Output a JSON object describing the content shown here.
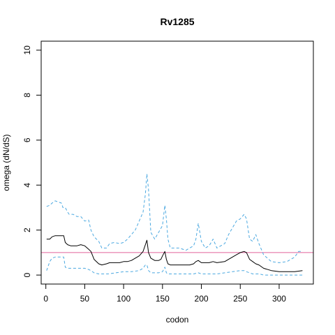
{
  "chart_data": {
    "type": "line",
    "title": "Rv1285",
    "xlabel": "codon",
    "ylabel": "omega (dN/dS)",
    "xlim": [
      -6,
      344
    ],
    "ylim": [
      -0.4,
      10.4
    ],
    "x_ticks": [
      0,
      50,
      100,
      150,
      200,
      250,
      300
    ],
    "y_ticks": [
      0,
      2,
      4,
      6,
      8,
      10
    ],
    "x_tick_labels": [
      "0",
      "50",
      "100",
      "150",
      "200",
      "250",
      "300"
    ],
    "y_tick_labels": [
      "0",
      "2",
      "4",
      "6",
      "8",
      "10"
    ],
    "reference_line": {
      "y": 1,
      "color": "#e0609a"
    },
    "grid": false,
    "colors": {
      "estimate": "#000000",
      "bounds": "#4aa8e0"
    },
    "series": [
      {
        "role": "estimate",
        "style": "solid",
        "x": [
          1,
          5,
          8,
          12,
          20,
          23,
          25,
          28,
          32,
          40,
          45,
          50,
          55,
          58,
          62,
          68,
          72,
          78,
          82,
          88,
          95,
          100,
          105,
          110,
          115,
          120,
          125,
          128,
          130,
          132,
          135,
          140,
          145,
          148,
          150,
          153,
          155,
          157,
          160,
          165,
          172,
          180,
          185,
          190,
          193,
          196,
          200,
          205,
          210,
          215,
          220,
          230,
          235,
          240,
          245,
          250,
          255,
          258,
          262,
          266,
          270,
          274,
          280,
          290,
          300,
          310,
          320,
          330
        ],
        "y": [
          1.6,
          1.6,
          1.7,
          1.75,
          1.75,
          1.75,
          1.45,
          1.35,
          1.3,
          1.3,
          1.35,
          1.3,
          1.15,
          1.05,
          0.7,
          0.5,
          0.45,
          0.5,
          0.55,
          0.55,
          0.55,
          0.6,
          0.6,
          0.65,
          0.75,
          0.85,
          1.05,
          1.35,
          1.55,
          1.0,
          0.75,
          0.65,
          0.65,
          0.7,
          0.85,
          1.05,
          0.7,
          0.5,
          0.45,
          0.45,
          0.45,
          0.45,
          0.45,
          0.5,
          0.6,
          0.65,
          0.55,
          0.55,
          0.55,
          0.6,
          0.55,
          0.6,
          0.7,
          0.8,
          0.9,
          1.0,
          1.05,
          1.0,
          0.7,
          0.6,
          0.5,
          0.45,
          0.3,
          0.2,
          0.15,
          0.15,
          0.15,
          0.2
        ]
      },
      {
        "role": "upper",
        "style": "dashed",
        "x": [
          1,
          5,
          8,
          12,
          20,
          22,
          25,
          28,
          30,
          35,
          40,
          45,
          50,
          55,
          58,
          62,
          68,
          72,
          78,
          82,
          88,
          95,
          100,
          105,
          110,
          115,
          120,
          125,
          128,
          130,
          132,
          135,
          140,
          145,
          150,
          153,
          155,
          157,
          160,
          165,
          172,
          180,
          185,
          190,
          193,
          196,
          200,
          205,
          210,
          215,
          220,
          230,
          235,
          240,
          245,
          250,
          255,
          258,
          262,
          266,
          270,
          274,
          280,
          290,
          300,
          310,
          320,
          325,
          330
        ],
        "y": [
          3.05,
          3.1,
          3.2,
          3.3,
          3.2,
          3.0,
          3.0,
          2.8,
          2.7,
          2.7,
          2.6,
          2.6,
          2.4,
          2.45,
          2.0,
          1.7,
          1.5,
          1.2,
          1.2,
          1.4,
          1.45,
          1.4,
          1.45,
          1.6,
          1.8,
          2.0,
          2.4,
          2.8,
          3.6,
          4.5,
          3.8,
          1.9,
          1.6,
          1.9,
          2.2,
          3.1,
          2.5,
          1.6,
          1.2,
          1.2,
          1.2,
          1.1,
          1.2,
          1.3,
          1.6,
          2.3,
          1.5,
          1.2,
          1.3,
          1.6,
          1.2,
          1.4,
          1.8,
          2.1,
          2.4,
          2.5,
          2.7,
          2.5,
          1.6,
          1.5,
          1.8,
          1.4,
          0.9,
          0.6,
          0.55,
          0.6,
          0.8,
          1.05,
          1.05
        ]
      },
      {
        "role": "lower",
        "style": "dashed",
        "x": [
          1,
          5,
          8,
          12,
          20,
          23,
          25,
          28,
          40,
          50,
          55,
          58,
          62,
          68,
          72,
          80,
          90,
          100,
          110,
          120,
          125,
          128,
          130,
          132,
          135,
          145,
          150,
          153,
          155,
          157,
          160,
          170,
          180,
          190,
          196,
          200,
          210,
          220,
          230,
          240,
          250,
          255,
          258,
          262,
          266,
          270,
          275,
          280,
          290,
          300,
          310,
          320,
          330
        ],
        "y": [
          0.2,
          0.6,
          0.75,
          0.8,
          0.8,
          0.8,
          0.35,
          0.3,
          0.3,
          0.3,
          0.25,
          0.2,
          0.1,
          0.05,
          0.05,
          0.05,
          0.1,
          0.15,
          0.15,
          0.2,
          0.3,
          0.45,
          0.45,
          0.2,
          0.1,
          0.1,
          0.15,
          0.35,
          0.1,
          0.05,
          0.05,
          0.05,
          0.05,
          0.05,
          0.1,
          0.05,
          0.05,
          0.05,
          0.1,
          0.15,
          0.2,
          0.2,
          0.15,
          0.1,
          0.05,
          0.05,
          0.05,
          0.0,
          0.0,
          0.0,
          0.0,
          0.0,
          0.0
        ]
      }
    ]
  }
}
